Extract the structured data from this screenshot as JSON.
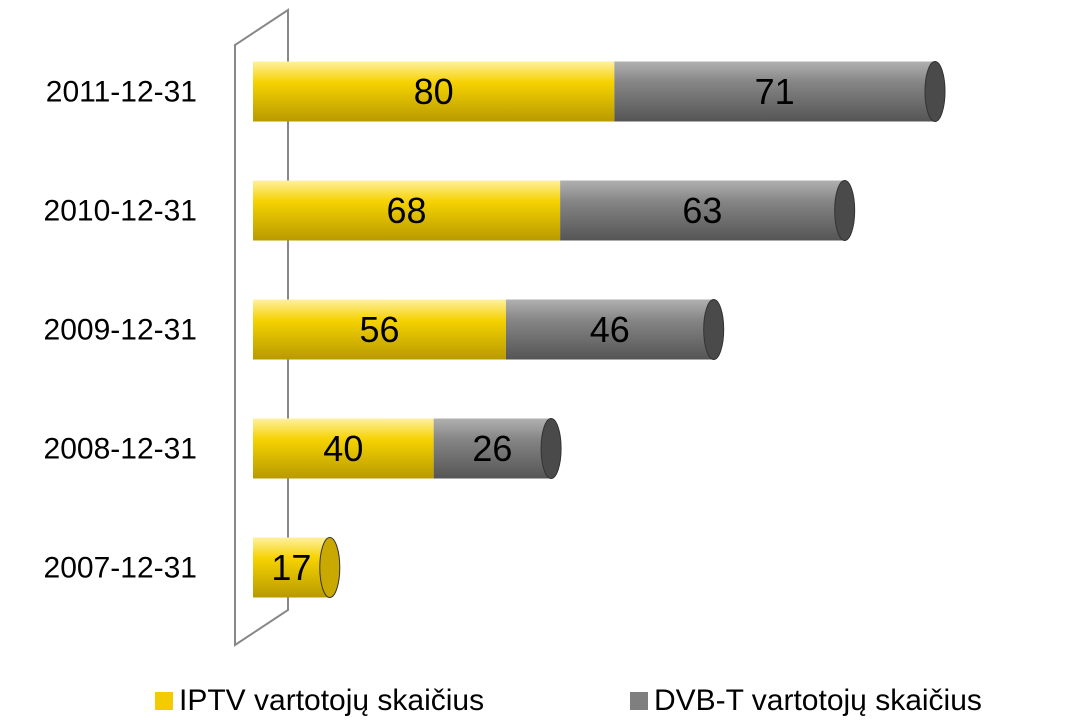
{
  "chart_data": {
    "type": "bar",
    "orientation": "horizontal",
    "stacked": true,
    "categories": [
      "2011-12-31",
      "2010-12-31",
      "2009-12-31",
      "2008-12-31",
      "2007-12-31"
    ],
    "series": [
      {
        "name": "IPTV vartotojų skaičius",
        "color": "#f2cc00",
        "values": [
          80,
          68,
          56,
          40,
          17
        ]
      },
      {
        "name": "DVB-T vartotojų skaičius",
        "color": "#7f7f7f",
        "values": [
          71,
          63,
          46,
          26,
          null
        ]
      }
    ],
    "legend": "bottom"
  }
}
